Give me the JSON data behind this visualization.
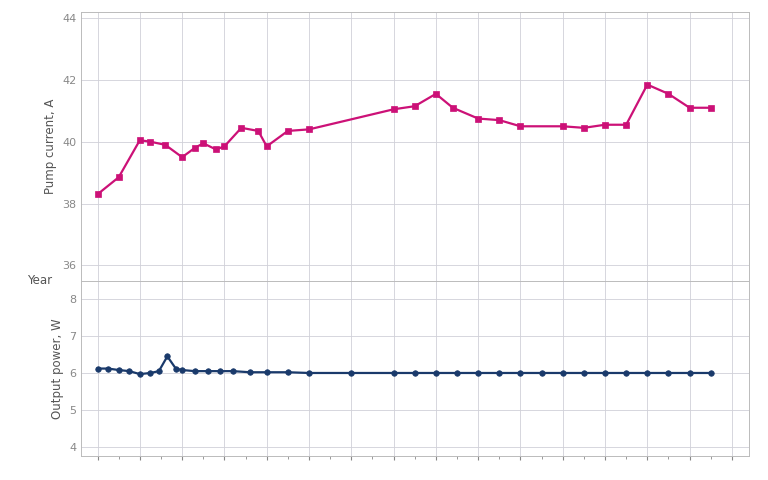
{
  "pump_years": [
    2009,
    2009.5,
    2010,
    2010.25,
    2010.6,
    2011,
    2011.3,
    2011.5,
    2011.8,
    2012,
    2012.4,
    2012.8,
    2013,
    2013.5,
    2014,
    2016,
    2016.5,
    2017,
    2017.4,
    2018,
    2018.5,
    2019,
    2020,
    2020.5,
    2021,
    2021.5,
    2022,
    2022.5,
    2023,
    2023.5
  ],
  "pump_current": [
    38.3,
    38.85,
    40.05,
    40.0,
    39.9,
    39.5,
    39.8,
    39.95,
    39.75,
    39.85,
    40.45,
    40.35,
    39.85,
    40.35,
    40.4,
    41.05,
    41.15,
    41.55,
    41.1,
    40.75,
    40.7,
    40.5,
    40.5,
    40.45,
    40.55,
    40.55,
    41.85,
    41.55,
    41.1,
    41.1
  ],
  "power_years": [
    2009,
    2009.25,
    2009.5,
    2009.75,
    2010,
    2010.25,
    2010.45,
    2010.65,
    2010.85,
    2011,
    2011.3,
    2011.6,
    2011.9,
    2012.2,
    2012.6,
    2013,
    2013.5,
    2014,
    2015,
    2016,
    2016.5,
    2017,
    2017.5,
    2018,
    2018.5,
    2019,
    2019.5,
    2020,
    2020.5,
    2021,
    2021.5,
    2022,
    2022.5,
    2023,
    2023.5
  ],
  "output_power": [
    6.12,
    6.12,
    6.08,
    6.05,
    5.97,
    6.0,
    6.05,
    6.45,
    6.12,
    6.08,
    6.05,
    6.05,
    6.05,
    6.05,
    6.02,
    6.02,
    6.02,
    6.0,
    6.0,
    6.0,
    6.0,
    6.0,
    6.0,
    6.0,
    6.0,
    6.0,
    6.0,
    6.0,
    6.0,
    6.0,
    6.0,
    6.0,
    6.0,
    6.0,
    6.0
  ],
  "pump_color": "#CC1177",
  "power_color": "#1a3a6b",
  "background_color": "#ffffff",
  "grid_color": "#d0d0d8",
  "pump_ylim": [
    35.5,
    44.2
  ],
  "pump_yticks": [
    36,
    38,
    40,
    42,
    44
  ],
  "power_ylim": [
    3.75,
    8.5
  ],
  "power_yticks": [
    4,
    5,
    6,
    7,
    8
  ],
  "xlim": [
    2008.6,
    2024.4
  ],
  "xticks": [
    2009,
    2010,
    2011,
    2012,
    2013,
    2014,
    2015,
    2016,
    2017,
    2018,
    2019,
    2020,
    2021,
    2022,
    2023,
    2024
  ],
  "xlabel": "Year",
  "pump_ylabel": "Pump current, A",
  "power_ylabel": "Output power, W",
  "tick_color": "#888888",
  "label_color": "#555555"
}
